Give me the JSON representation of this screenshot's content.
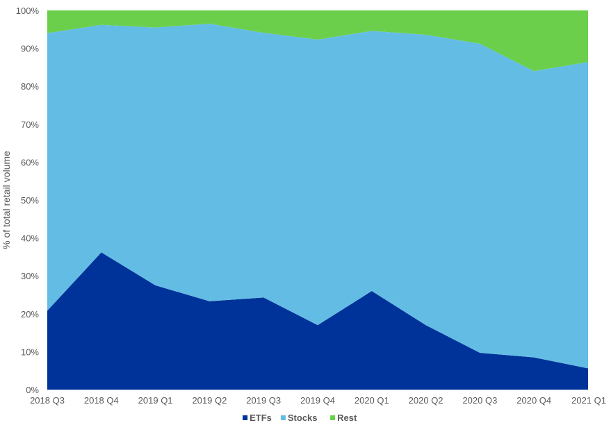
{
  "chart_data": {
    "type": "area",
    "stacked": true,
    "ylabel": "% of total retail volume",
    "xlabel": "",
    "ylim": [
      0,
      100
    ],
    "y_ticks": [
      "0%",
      "10%",
      "20%",
      "30%",
      "40%",
      "50%",
      "60%",
      "70%",
      "80%",
      "90%",
      "100%"
    ],
    "categories": [
      "2018 Q3",
      "2018 Q4",
      "2019 Q1",
      "2019 Q2",
      "2019 Q3",
      "2019 Q4",
      "2020 Q1",
      "2020 Q2",
      "2020 Q3",
      "2020 Q4",
      "2021 Q1"
    ],
    "series": [
      {
        "name": "ETFs",
        "color": "#003399",
        "values": [
          20.8,
          36.2,
          27.5,
          23.3,
          24.3,
          17.0,
          26.0,
          17.0,
          9.7,
          8.5,
          5.6
        ]
      },
      {
        "name": "Stocks",
        "color": "#63BCE4",
        "values": [
          73.2,
          60.0,
          68.0,
          73.2,
          69.8,
          75.3,
          68.6,
          76.6,
          81.5,
          75.5,
          80.8
        ]
      },
      {
        "name": "Rest",
        "color": "#6CCF4C",
        "values": [
          6.0,
          3.8,
          4.5,
          3.5,
          5.9,
          7.7,
          5.4,
          6.4,
          8.8,
          16.0,
          13.6
        ]
      }
    ],
    "legend_position": "bottom",
    "grid": false
  }
}
